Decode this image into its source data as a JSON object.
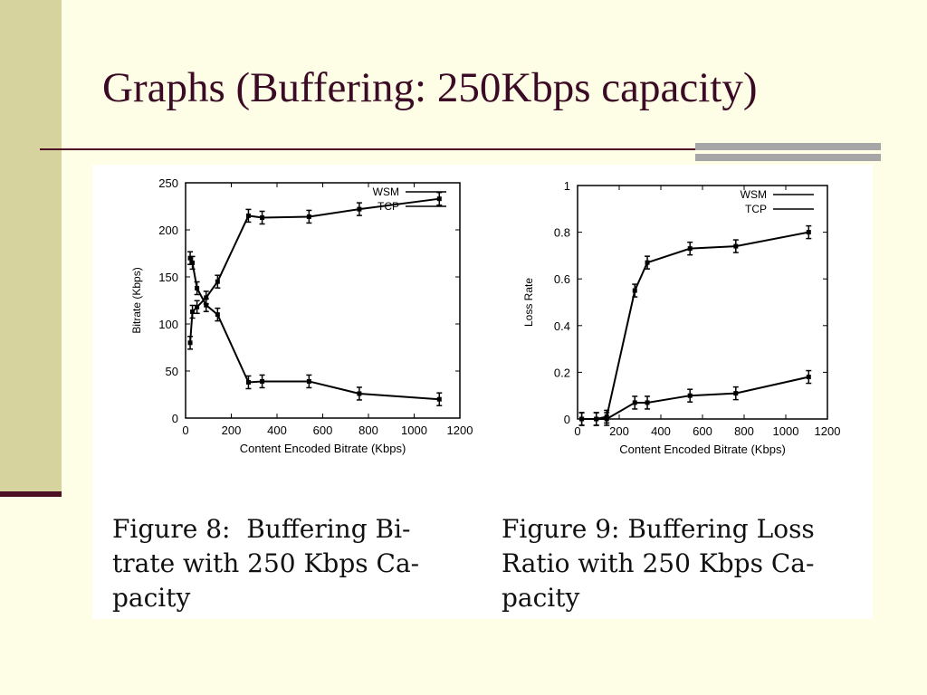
{
  "slide": {
    "title": "Graphs (Buffering: 250Kbps capacity)"
  },
  "figures": [
    {
      "caption_lines": [
        "Figure 8:  Buffering Bi-",
        "trate with 250 Kbps Ca-",
        "pacity"
      ]
    },
    {
      "caption_lines": [
        "Figure 9: Buffering Loss",
        "Ratio with 250 Kbps Ca-",
        "pacity"
      ]
    }
  ],
  "chart_data": [
    {
      "type": "line",
      "title": "",
      "xlabel": "Content Encoded Bitrate (Kbps)",
      "ylabel": "Bitrate (Kbps)",
      "xlim": [
        0,
        1200
      ],
      "ylim": [
        0,
        250
      ],
      "x_ticks": [
        0,
        200,
        400,
        600,
        800,
        1000,
        1200
      ],
      "y_ticks": [
        0,
        50,
        100,
        150,
        200,
        250
      ],
      "grid": false,
      "legend_position": "top-right",
      "series": [
        {
          "name": "WSM",
          "x": [
            20,
            30,
            50,
            90,
            140,
            275,
            335,
            540,
            760,
            1110
          ],
          "y": [
            80,
            113,
            118,
            128,
            145,
            215,
            213,
            214,
            222,
            233
          ]
        },
        {
          "name": "TCP",
          "x": [
            20,
            30,
            50,
            90,
            140,
            275,
            335,
            540,
            760,
            1110
          ],
          "y": [
            170,
            165,
            138,
            120,
            110,
            38,
            39,
            39,
            26,
            20
          ]
        }
      ]
    },
    {
      "type": "line",
      "title": "",
      "xlabel": "Content Encoded Bitrate (Kbps)",
      "ylabel": "Loss Rate",
      "xlim": [
        0,
        1200
      ],
      "ylim": [
        0,
        1
      ],
      "x_ticks": [
        0,
        200,
        400,
        600,
        800,
        1000,
        1200
      ],
      "y_ticks": [
        0,
        0.2,
        0.4,
        0.6,
        0.8,
        1
      ],
      "grid": false,
      "legend_position": "top-right",
      "series": [
        {
          "name": "WSM",
          "x": [
            20,
            90,
            140,
            275,
            335,
            540,
            760,
            1110
          ],
          "y": [
            0,
            0,
            0,
            0.07,
            0.07,
            0.1,
            0.11,
            0.18
          ]
        },
        {
          "name": "TCP",
          "x": [
            20,
            90,
            140,
            275,
            335,
            540,
            760,
            1110
          ],
          "y": [
            0,
            0,
            0.01,
            0.55,
            0.67,
            0.73,
            0.74,
            0.8
          ]
        }
      ]
    }
  ]
}
